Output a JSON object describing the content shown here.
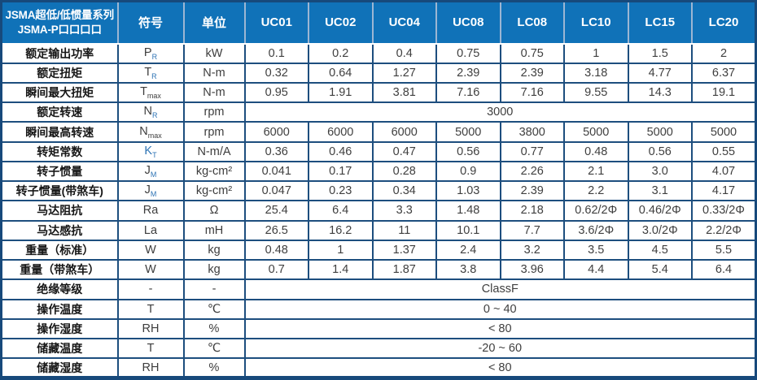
{
  "colors": {
    "header_bg": "#1072b8",
    "grid_border": "#1d4e7e",
    "header_divider": "#9cb6d3",
    "accent_blue": "#2e74b5"
  },
  "table": {
    "title_line1": "JSMA超低/低惯量系列",
    "title_line2": "JSMA-P口口口口",
    "symbol_header": "符号",
    "unit_header": "单位",
    "models": [
      "UC01",
      "UC02",
      "UC04",
      "UC08",
      "LC08",
      "LC10",
      "LC15",
      "LC20"
    ],
    "rows": [
      {
        "label": "额定输出功率",
        "symbol": {
          "main": "P",
          "sub": "R",
          "sub_accent": true
        },
        "unit": "kW",
        "values": [
          "0.1",
          "0.2",
          "0.4",
          "0.75",
          "0.75",
          "1",
          "1.5",
          "2"
        ]
      },
      {
        "label": "额定扭矩",
        "symbol": {
          "main": "T",
          "sub": "R",
          "sub_accent": true
        },
        "unit": "N-m",
        "values": [
          "0.32",
          "0.64",
          "1.27",
          "2.39",
          "2.39",
          "3.18",
          "4.77",
          "6.37"
        ]
      },
      {
        "label": "瞬间最大扭矩",
        "symbol": {
          "main": "T",
          "sub": "max"
        },
        "unit": "N-m",
        "values": [
          "0.95",
          "1.91",
          "3.81",
          "7.16",
          "7.16",
          "9.55",
          "14.3",
          "19.1"
        ]
      },
      {
        "label": "额定转速",
        "symbol": {
          "main": "N",
          "sub": "R",
          "sub_accent": true
        },
        "unit": "rpm",
        "merged": "3000"
      },
      {
        "label": "瞬间最高转速",
        "symbol": {
          "main": "N",
          "sub": "max"
        },
        "unit": "rpm",
        "values": [
          "6000",
          "6000",
          "6000",
          "5000",
          "3800",
          "5000",
          "5000",
          "5000"
        ]
      },
      {
        "label": "转矩常数",
        "symbol": {
          "main": "K",
          "sub": "T",
          "accent": true,
          "sub_accent": true
        },
        "unit": "N-m/A",
        "values": [
          "0.36",
          "0.46",
          "0.47",
          "0.56",
          "0.77",
          "0.48",
          "0.56",
          "0.55"
        ]
      },
      {
        "label": "转子惯量",
        "symbol": {
          "main": "J",
          "sub": "M",
          "sub_accent": true
        },
        "unit": "kg-cm²",
        "values": [
          "0.041",
          "0.17",
          "0.28",
          "0.9",
          "2.26",
          "2.1",
          "3.0",
          "4.07"
        ]
      },
      {
        "label": "转子惯量(带煞车)",
        "symbol": {
          "main": "J",
          "sub": "M",
          "sub_accent": true
        },
        "unit": "kg-cm²",
        "values": [
          "0.047",
          "0.23",
          "0.34",
          "1.03",
          "2.39",
          "2.2",
          "3.1",
          "4.17"
        ]
      },
      {
        "label": "马达阻抗",
        "symbol": {
          "main": "Ra"
        },
        "unit": "Ω",
        "values": [
          "25.4",
          "6.4",
          "3.3",
          "1.48",
          "2.18",
          "0.62/2Φ",
          "0.46/2Φ",
          "0.33/2Φ"
        ]
      },
      {
        "label": "马达感抗",
        "symbol": {
          "main": "La"
        },
        "unit": "mH",
        "values": [
          "26.5",
          "16.2",
          "11",
          "10.1",
          "7.7",
          "3.6/2Φ",
          "3.0/2Φ",
          "2.2/2Φ"
        ]
      },
      {
        "label": "重量（标准）",
        "symbol": {
          "main": "W"
        },
        "unit": "kg",
        "values": [
          "0.48",
          "1",
          "1.37",
          "2.4",
          "3.2",
          "3.5",
          "4.5",
          "5.5"
        ]
      },
      {
        "label": "重量（带煞车）",
        "symbol": {
          "main": "W"
        },
        "unit": "kg",
        "values": [
          "0.7",
          "1.4",
          "1.87",
          "3.8",
          "3.96",
          "4.4",
          "5.4",
          "6.4"
        ]
      },
      {
        "label": "绝缘等级",
        "symbol": {
          "main": "-"
        },
        "unit": "-",
        "merged": "ClassF"
      },
      {
        "label": "操作温度",
        "symbol": {
          "main": "T"
        },
        "unit": "℃",
        "merged": "0 ~ 40"
      },
      {
        "label": "操作湿度",
        "symbol": {
          "main": "RH"
        },
        "unit": "%",
        "merged": "< 80"
      },
      {
        "label": "储藏温度",
        "symbol": {
          "main": "T"
        },
        "unit": "℃",
        "merged": "-20 ~ 60"
      },
      {
        "label": "储藏湿度",
        "symbol": {
          "main": "RH"
        },
        "unit": "%",
        "merged": "< 80"
      }
    ]
  }
}
